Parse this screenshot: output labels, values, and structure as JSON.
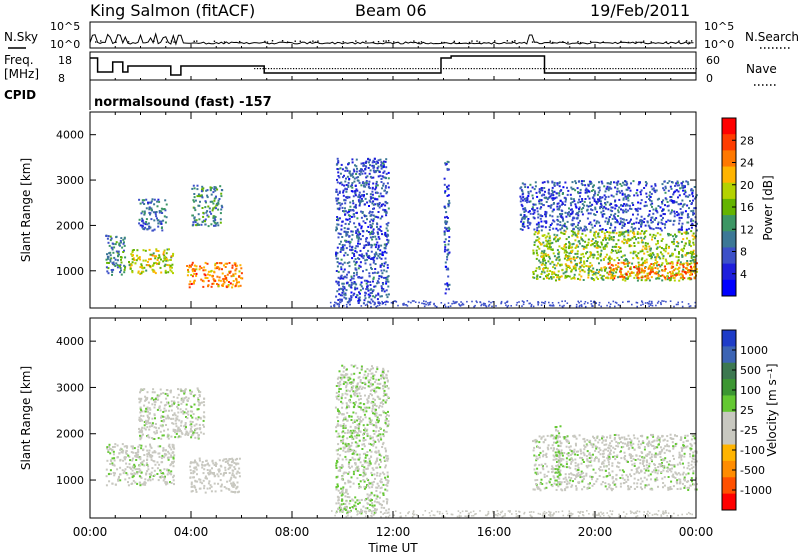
{
  "header": {
    "station": "King Salmon (fitACF)",
    "beam": "Beam 06",
    "date": "19/Feb/2011"
  },
  "top_panel": {
    "nsky_label": "N.Sky",
    "nsky_ticks": [
      "10^5",
      "10^0"
    ],
    "nsearch_label": "N.Search",
    "nsearch_ticks": [
      "10^5",
      "10^0"
    ],
    "freq_label_1": "Freq.",
    "freq_label_2": "[MHz]",
    "freq_ticks": [
      "18",
      "8"
    ],
    "nave_label": "Nave",
    "nave_ticks": [
      "60",
      "0"
    ],
    "cpid_label": "CPID",
    "cpid_value": "normalsound (fast) -157"
  },
  "axes": {
    "ylabel": "Slant Range [km]",
    "xlabel": "Time UT",
    "yticks": [
      "1000",
      "2000",
      "3000",
      "4000"
    ],
    "xticks": [
      "00:00",
      "04:00",
      "08:00",
      "12:00",
      "16:00",
      "20:00",
      "00:00"
    ]
  },
  "colorbars": {
    "power": {
      "label": "Power [dB]",
      "ticks": [
        "28",
        "24",
        "20",
        "16",
        "12",
        "8",
        "4"
      ],
      "colors": [
        "#ff0000",
        "#ff3c00",
        "#ff7800",
        "#ffb400",
        "#b4d200",
        "#64b400",
        "#3c9664",
        "#3c7896",
        "#3c50c8",
        "#1e1edc",
        "#0000ff"
      ]
    },
    "velocity": {
      "label": "Velocity [m s⁻¹]",
      "ticks": [
        "1000",
        "500",
        "100",
        "25",
        "-25",
        "-100",
        "-500",
        "-1000"
      ],
      "colors": [
        "#1e3cc8",
        "#3c64b4",
        "#3c7850",
        "#3c9632",
        "#64c832",
        "#c8c8c0",
        "#c8c8c0",
        "#ffb400",
        "#ff8c00",
        "#ff5000",
        "#ff0000"
      ]
    }
  },
  "chart_data": [
    {
      "type": "heatmap",
      "title": "Power",
      "ylabel": "Slant Range [km]",
      "xlabel": "Time UT",
      "xlim": [
        0,
        24
      ],
      "ylim": [
        180,
        4500
      ],
      "zlim": [
        0,
        30
      ],
      "patches": [
        {
          "t0": 0.6,
          "t1": 1.4,
          "r0": 900,
          "r1": 1800,
          "z": 10
        },
        {
          "t0": 1.5,
          "t1": 3.3,
          "r0": 950,
          "r1": 1500,
          "z": 18
        },
        {
          "t0": 1.9,
          "t1": 3.0,
          "r0": 1900,
          "r1": 2600,
          "z": 8
        },
        {
          "t0": 3.8,
          "t1": 6.0,
          "r0": 650,
          "r1": 1200,
          "z": 24
        },
        {
          "t0": 4.0,
          "t1": 5.2,
          "r0": 2000,
          "r1": 2900,
          "z": 10
        },
        {
          "t0": 9.7,
          "t1": 11.8,
          "r0": 300,
          "r1": 3500,
          "z": 6
        },
        {
          "t0": 14.0,
          "t1": 14.2,
          "r0": 400,
          "r1": 3500,
          "z": 6
        },
        {
          "t0": 17.5,
          "t1": 24.0,
          "r0": 800,
          "r1": 1900,
          "z": 16
        },
        {
          "t0": 20.5,
          "t1": 24.0,
          "r0": 850,
          "r1": 1200,
          "z": 24
        },
        {
          "t0": 17.0,
          "t1": 24.0,
          "r0": 1900,
          "r1": 3000,
          "z": 6
        }
      ]
    },
    {
      "type": "heatmap",
      "title": "Velocity",
      "ylabel": "Slant Range [km]",
      "xlabel": "Time UT",
      "xlim": [
        0,
        24
      ],
      "ylim": [
        180,
        4500
      ],
      "zlim": [
        -1000,
        1000
      ],
      "patches": [
        {
          "t0": 0.6,
          "t1": 3.3,
          "r0": 900,
          "r1": 1800,
          "z": 0
        },
        {
          "t0": 1.9,
          "t1": 4.5,
          "r0": 1900,
          "r1": 3000,
          "z": 0
        },
        {
          "t0": 3.9,
          "t1": 5.9,
          "r0": 750,
          "r1": 1500,
          "z": -150
        },
        {
          "t0": 9.7,
          "t1": 11.8,
          "r0": 300,
          "r1": 3500,
          "z": 50
        },
        {
          "t0": 17.5,
          "t1": 24.0,
          "r0": 800,
          "r1": 2000,
          "z": 0
        },
        {
          "t0": 18.4,
          "t1": 18.6,
          "r0": 900,
          "r1": 2200,
          "z": 120
        }
      ]
    }
  ]
}
